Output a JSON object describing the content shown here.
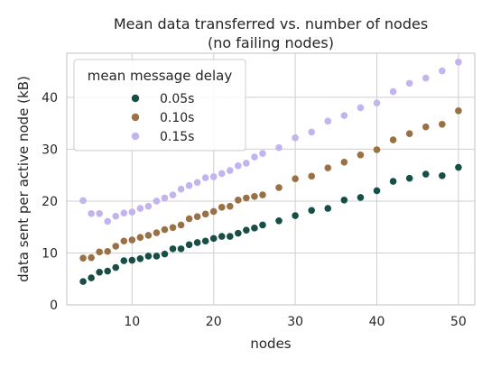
{
  "chart_data": {
    "type": "scatter",
    "title": "Mean data transferred vs. number of nodes",
    "subtitle": "(no failing nodes)",
    "xlabel": "nodes",
    "ylabel": "data sent per active node (kB)",
    "xlim": [
      2,
      52
    ],
    "ylim": [
      0,
      48.5
    ],
    "xticks": [
      10,
      20,
      30,
      40,
      50
    ],
    "yticks": [
      0,
      10,
      20,
      30,
      40
    ],
    "grid": true,
    "legend": {
      "title": "mean message delay",
      "placement": "top-left"
    },
    "series": [
      {
        "name": "0.05s",
        "color": "#174f47",
        "x": [
          4,
          5,
          6,
          7,
          8,
          9,
          10,
          11,
          12,
          13,
          14,
          15,
          16,
          17,
          18,
          19,
          20,
          21,
          22,
          23,
          24,
          25,
          26,
          28,
          30,
          32,
          34,
          36,
          38,
          40,
          42,
          44,
          46,
          48,
          50
        ],
        "y": [
          4.5,
          5.2,
          6.3,
          6.5,
          7.2,
          8.5,
          8.6,
          8.9,
          9.4,
          9.4,
          9.8,
          10.8,
          10.8,
          11.6,
          12.0,
          12.3,
          12.8,
          13.2,
          13.2,
          13.8,
          14.4,
          14.8,
          15.4,
          16.2,
          17.2,
          18.2,
          18.6,
          20.2,
          20.7,
          22.0,
          23.8,
          24.4,
          25.2,
          24.9,
          26.5
        ]
      },
      {
        "name": "0.10s",
        "color": "#9a7045",
        "x": [
          4,
          5,
          6,
          7,
          8,
          9,
          10,
          11,
          12,
          13,
          14,
          15,
          16,
          17,
          18,
          19,
          20,
          21,
          22,
          23,
          24,
          25,
          26,
          28,
          30,
          32,
          34,
          36,
          38,
          40,
          42,
          44,
          46,
          48,
          50
        ],
        "y": [
          9.0,
          9.1,
          10.2,
          10.3,
          11.3,
          12.3,
          12.5,
          13.0,
          13.4,
          13.9,
          14.5,
          14.9,
          15.4,
          16.6,
          17.0,
          17.5,
          18.0,
          18.8,
          19.0,
          20.2,
          20.6,
          20.9,
          21.2,
          22.6,
          24.3,
          24.8,
          26.4,
          27.5,
          28.9,
          29.9,
          31.8,
          33.0,
          34.3,
          34.8,
          37.4
        ]
      },
      {
        "name": "0.15s",
        "color": "#c3b3ee",
        "x": [
          4,
          5,
          6,
          7,
          8,
          9,
          10,
          11,
          12,
          13,
          14,
          15,
          16,
          17,
          18,
          19,
          20,
          21,
          22,
          23,
          24,
          25,
          26,
          28,
          30,
          32,
          34,
          36,
          38,
          40,
          42,
          44,
          46,
          48,
          50
        ],
        "y": [
          20.1,
          17.6,
          17.6,
          16.1,
          17.1,
          17.7,
          17.9,
          18.6,
          19.0,
          20.0,
          20.6,
          21.2,
          22.3,
          23.0,
          23.6,
          24.5,
          24.7,
          25.3,
          25.9,
          26.8,
          27.3,
          28.5,
          29.2,
          30.3,
          32.2,
          33.3,
          35.4,
          36.5,
          38.0,
          38.9,
          41.1,
          42.7,
          43.7,
          45.1,
          46.8
        ]
      }
    ]
  }
}
